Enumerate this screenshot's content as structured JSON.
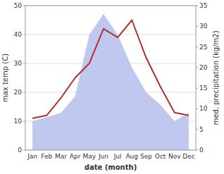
{
  "chart_data": {
    "type": "line",
    "categories": [
      "Jan",
      "Feb",
      "Mar",
      "Apr",
      "May",
      "Jun",
      "Jul",
      "Aug",
      "Sep",
      "Oct",
      "Nov",
      "Dec"
    ],
    "xlabel": "date (month)",
    "ylabel": "max temp (C)",
    "y2label": "med. precipitation (kg/m2)",
    "series": [
      {
        "type": "area",
        "axis": "y2",
        "color": "#c0c8f0",
        "values": [
          7,
          8,
          9,
          13,
          28,
          33,
          28,
          20,
          14,
          11,
          7,
          9
        ]
      },
      {
        "type": "line",
        "color": "#b03030",
        "values": [
          11,
          12,
          18,
          25,
          30,
          42,
          39,
          45,
          32,
          22,
          13,
          12
        ]
      }
    ],
    "ylim": [
      0,
      50
    ],
    "yticks": [
      0,
      10,
      20,
      30,
      40,
      50
    ],
    "y2lim": [
      0,
      35
    ],
    "y2ticks": [
      0,
      5,
      10,
      15,
      20,
      25,
      30,
      35
    ],
    "grid": true
  }
}
